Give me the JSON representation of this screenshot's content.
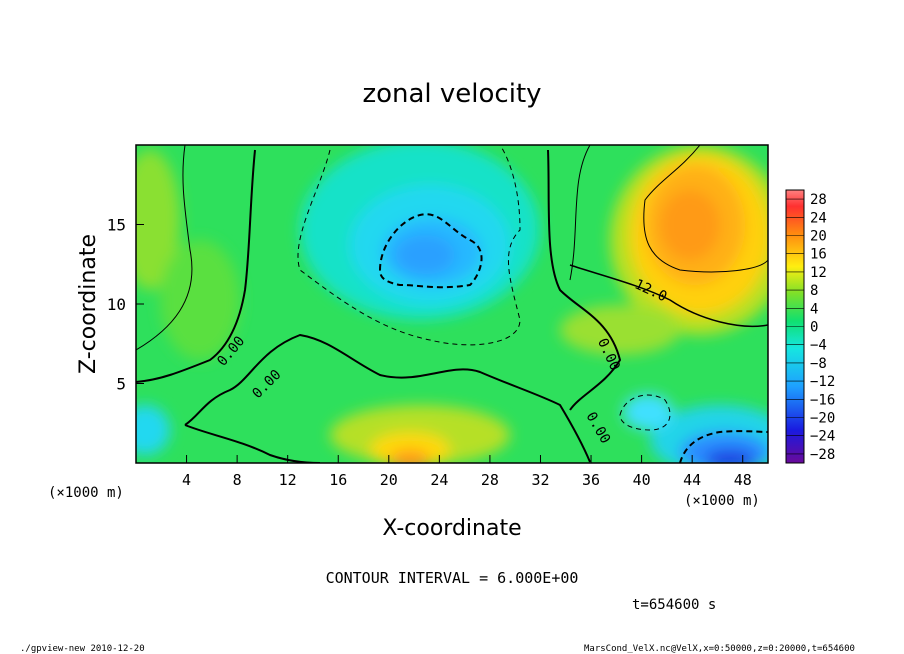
{
  "chart_data": {
    "type": "heatmap",
    "title": "zonal velocity",
    "xlabel": "X-coordinate",
    "ylabel": "Z-coordinate",
    "x_unit": "(×1000 m)",
    "z_unit": "(×1000 m)",
    "xlim": [
      0,
      50
    ],
    "ylim": [
      0,
      20
    ],
    "x_ticks": [
      4,
      8,
      12,
      16,
      20,
      24,
      28,
      32,
      36,
      40,
      44,
      48
    ],
    "y_ticks": [
      5,
      10,
      15
    ],
    "colorbar": {
      "ticks": [
        28,
        24,
        20,
        16,
        12,
        8,
        4,
        0,
        -4,
        -8,
        -12,
        -16,
        -20,
        -24,
        -28
      ],
      "range": [
        -30,
        30
      ]
    },
    "contour_labels": [
      "0.00",
      "0.00",
      "12.0",
      "0.00",
      "0.00"
    ],
    "contour_interval": "CONTOUR INTERVAL = 6.000E+00",
    "time": "t=654600 s"
  },
  "footer": {
    "left": "./gpview-new  2010-12-20",
    "right": "MarsCond_VelX.nc@VelX,x=0:50000,z=0:20000,t=654600"
  }
}
